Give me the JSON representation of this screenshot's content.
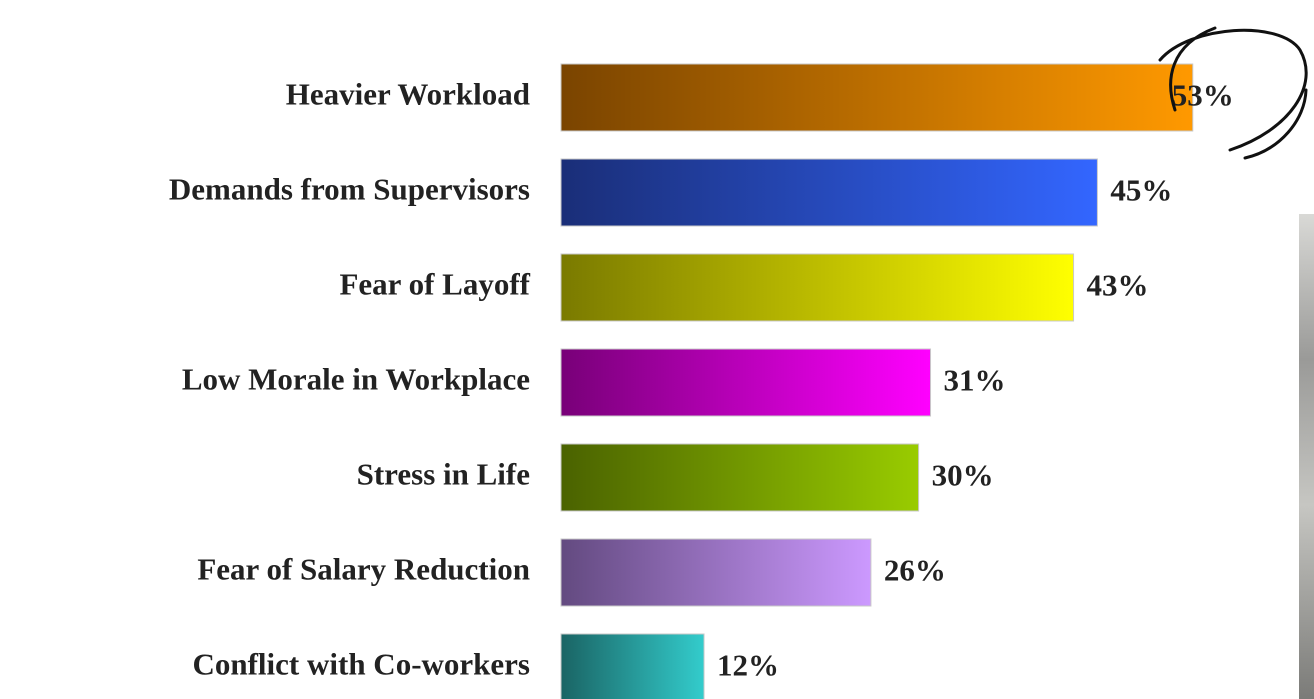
{
  "chart_data": {
    "type": "bar",
    "orientation": "horizontal",
    "categories": [
      "Heavier Workload",
      "Demands from Supervisors",
      "Fear of Layoff",
      "Low Morale in Workplace",
      "Stress in Life",
      "Fear of Salary Reduction",
      "Conflict with Co-workers"
    ],
    "values": [
      53,
      45,
      43,
      31,
      30,
      26,
      12
    ],
    "value_labels": [
      "53%",
      "45%",
      "43%",
      "31%",
      "30%",
      "26%",
      "12%"
    ],
    "gradients": [
      [
        "#7a4400",
        "#ff9900"
      ],
      [
        "#1a2e78",
        "#3366ff"
      ],
      [
        "#7a7a00",
        "#ffff00"
      ],
      [
        "#780078",
        "#ff00ff"
      ],
      [
        "#4a6200",
        "#99cc00"
      ],
      [
        "#634a80",
        "#cc99ff"
      ],
      [
        "#1a6464",
        "#33cccc"
      ]
    ]
  }
}
